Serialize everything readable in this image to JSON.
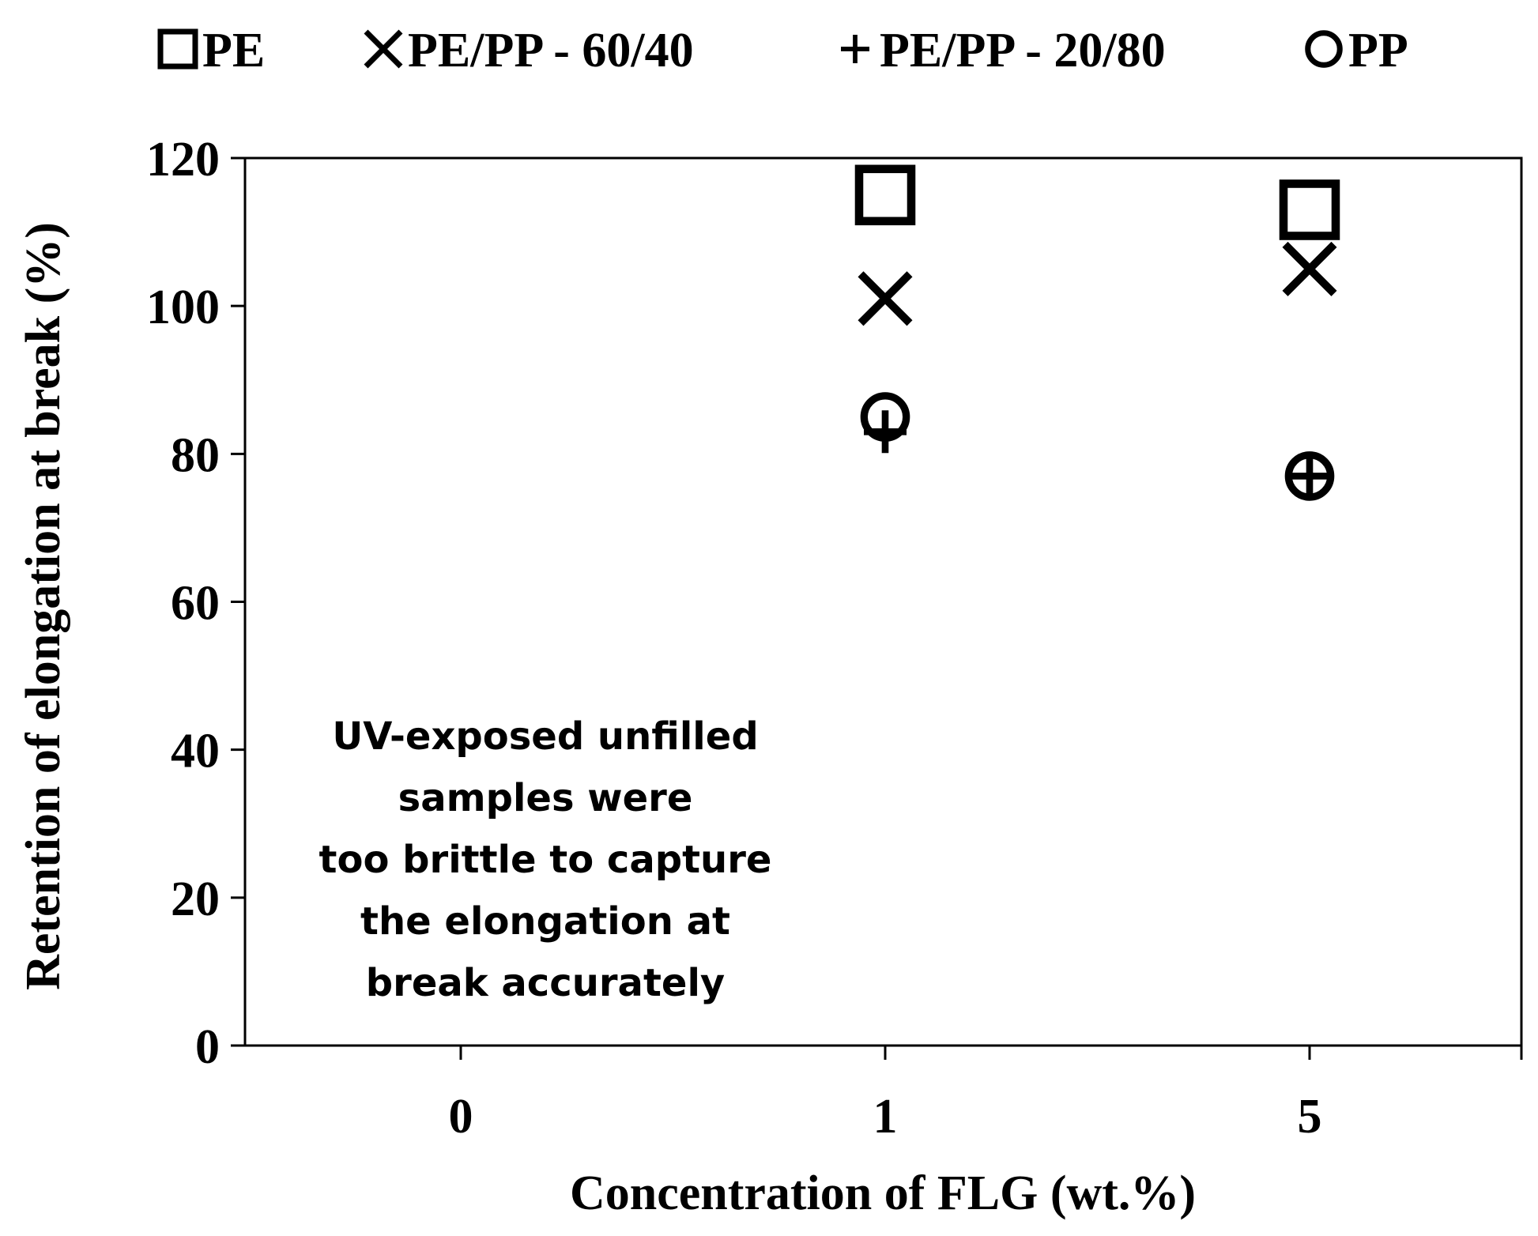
{
  "chart_data": {
    "type": "scatter",
    "title": "",
    "xlabel": "Concentration of FLG (wt.%)",
    "ylabel": "Retention of elongation at break (%)",
    "categories": [
      "0",
      "1",
      "5"
    ],
    "ylim": [
      0,
      120
    ],
    "yticks": [
      0,
      20,
      40,
      60,
      80,
      100,
      120
    ],
    "grid": false,
    "legend_position": "top",
    "annotation": [
      "UV-exposed unfilled",
      "samples were",
      "too brittle to capture",
      "the elongation at",
      "break accurately"
    ],
    "series": [
      {
        "name": "PE",
        "marker": "square",
        "values": [
          null,
          115,
          113
        ]
      },
      {
        "name": "PE/PP - 60/40",
        "marker": "x",
        "values": [
          null,
          101,
          105
        ]
      },
      {
        "name": "PE/PP - 20/80",
        "marker": "plus",
        "values": [
          null,
          83,
          77
        ]
      },
      {
        "name": "PP",
        "marker": "circle",
        "values": [
          null,
          85,
          77
        ]
      }
    ],
    "colors": {
      "marker": "#000000",
      "axis": "#000000",
      "background": "#ffffff"
    }
  }
}
